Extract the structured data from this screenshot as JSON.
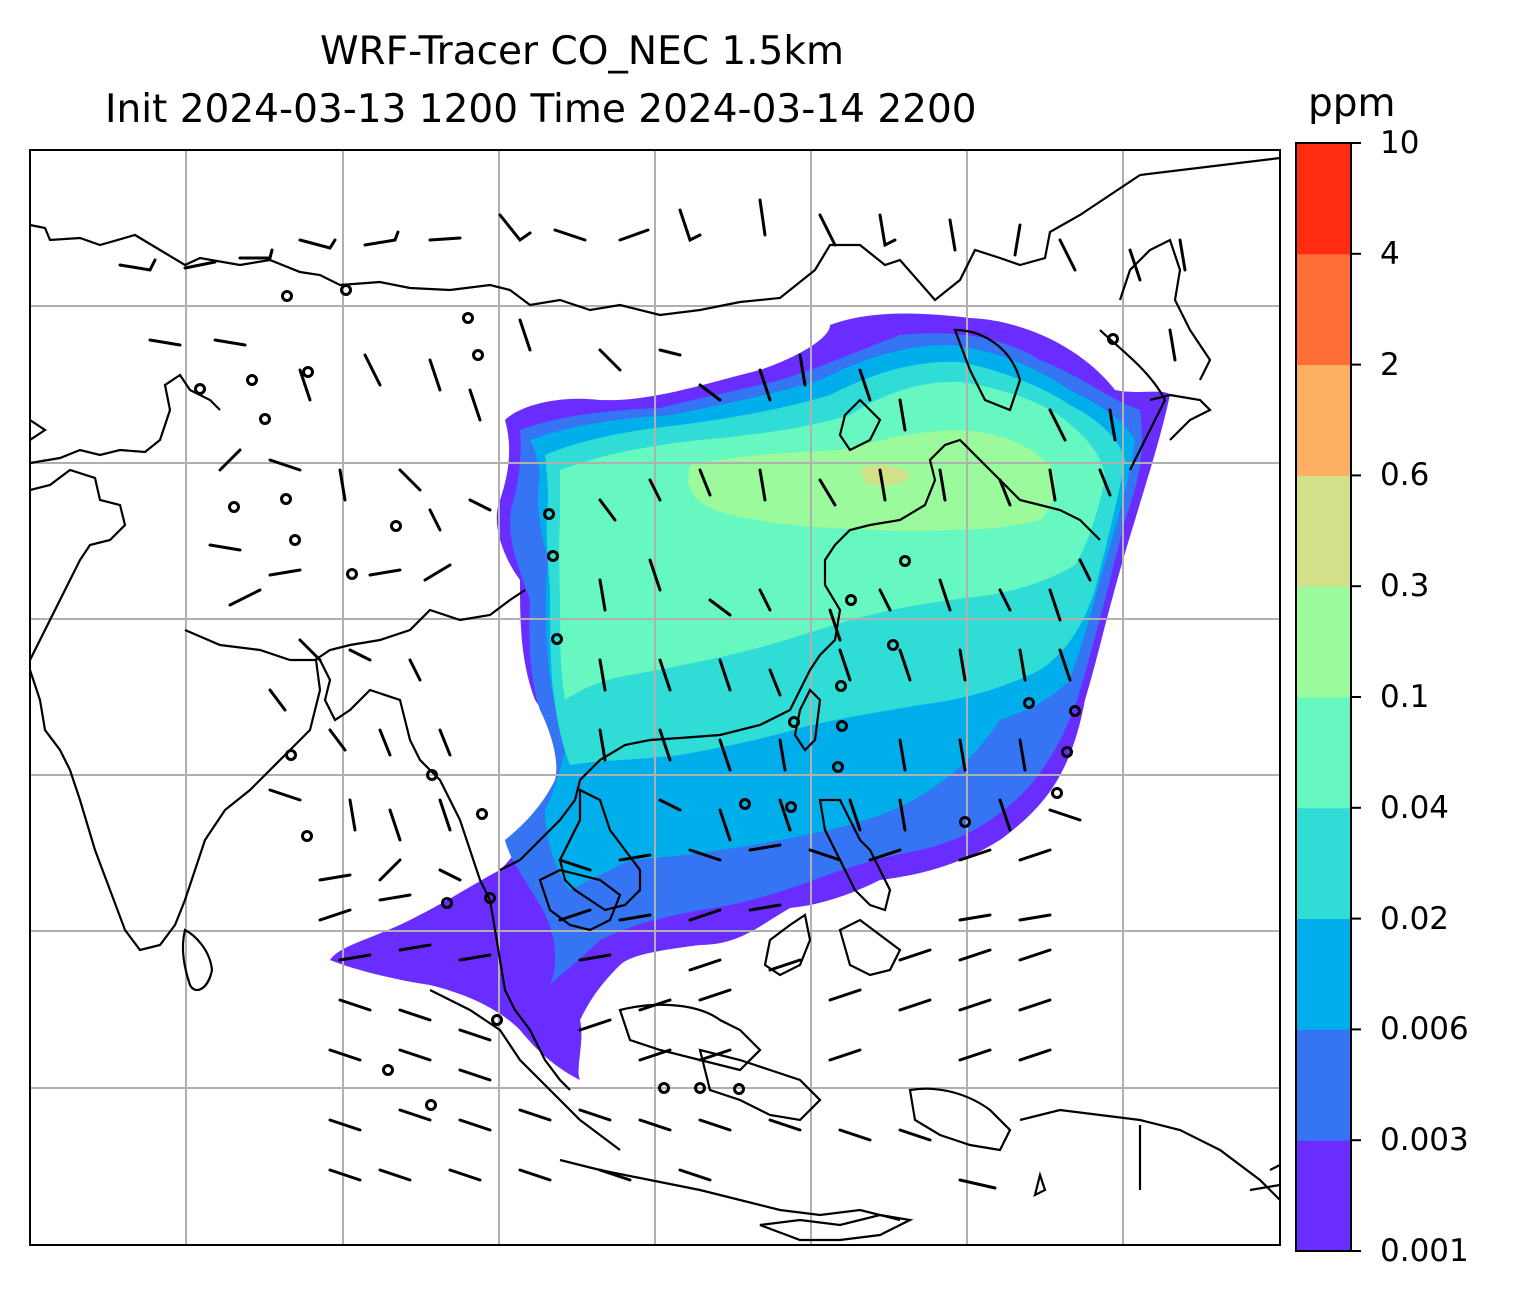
{
  "chart_data": {
    "type": "heatmap",
    "title": "WRF-Tracer CO_NEC 1.5km",
    "subtitle": "Init 2024-03-13 1200 Time 2024-03-14 2200",
    "colorbar": {
      "unit": "ppm",
      "levels": [
        "0.001",
        "0.003",
        "0.006",
        "0.02",
        "0.04",
        "0.1",
        "0.3",
        "0.6",
        "2",
        "4",
        "10"
      ],
      "colors": [
        "#6a2dff",
        "#3574f2",
        "#00aeeb",
        "#2fdcd6",
        "#67f7c0",
        "#9afa9c",
        "#d2e08a",
        "#fdb063",
        "#ff6d38",
        "#ff2c12"
      ]
    },
    "grid": true,
    "overlays": [
      "coastlines",
      "wind-barbs"
    ]
  }
}
